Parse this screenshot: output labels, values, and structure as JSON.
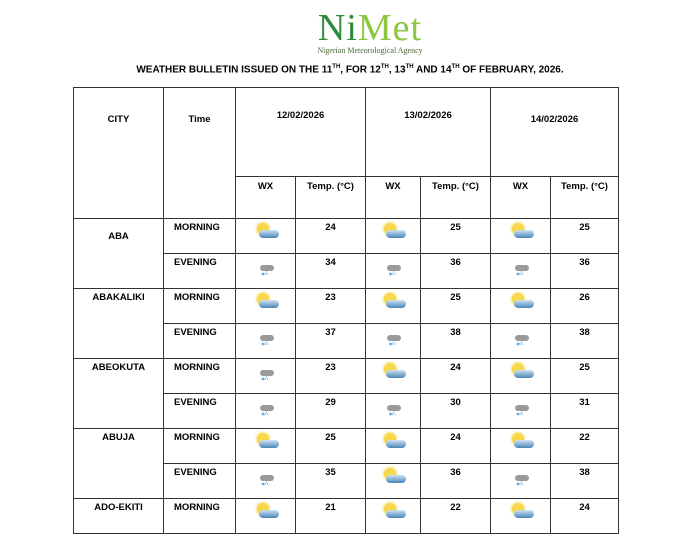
{
  "logo": {
    "name_a": "Ni",
    "name_b": "Met",
    "subtitle": "Nigerian Meteorological Agency"
  },
  "title": {
    "p1": "WEATHER BULLETIN ISSUED ON THE 11",
    "p2": ", FOR 12",
    "p3": ", 13",
    "p4": " AND 14",
    "p5": " OF FEBRUARY, 2026.",
    "sup": "TH"
  },
  "headers": {
    "city": "CITY",
    "time": "Time",
    "dates": [
      "12/02/2026",
      "13/02/2026",
      "14/02/2026"
    ],
    "wx": "WX",
    "temp": "Temp. (°C)"
  },
  "rows": [
    {
      "city": "ABA",
      "periods": [
        {
          "time": "MORNING",
          "wx": [
            "sun-cloud",
            "sun-cloud",
            "sun-cloud"
          ],
          "temps": [
            "24",
            "25",
            "25"
          ]
        },
        {
          "time": "EVENING",
          "wx": [
            "rain",
            "rain",
            "rain"
          ],
          "temps": [
            "34",
            "36",
            "36"
          ]
        }
      ]
    },
    {
      "city": "ABAKALIKI",
      "periods": [
        {
          "time": "MORNING",
          "wx": [
            "sun-cloud",
            "sun-cloud",
            "sun-cloud"
          ],
          "temps": [
            "23",
            "25",
            "26"
          ]
        },
        {
          "time": "EVENING",
          "wx": [
            "rain",
            "rain",
            "rain"
          ],
          "temps": [
            "37",
            "38",
            "38"
          ]
        }
      ]
    },
    {
      "city": "ABEOKUTA",
      "periods": [
        {
          "time": "MORNING",
          "wx": [
            "rain",
            "sun-cloud",
            "sun-cloud"
          ],
          "temps": [
            "23",
            "24",
            "25"
          ]
        },
        {
          "time": "EVENING",
          "wx": [
            "rain",
            "rain",
            "rain"
          ],
          "temps": [
            "29",
            "30",
            "31"
          ]
        }
      ]
    },
    {
      "city": "ABUJA",
      "periods": [
        {
          "time": "MORNING",
          "wx": [
            "sun-cloud",
            "sun-cloud",
            "sun-cloud"
          ],
          "temps": [
            "25",
            "24",
            "22"
          ]
        },
        {
          "time": "EVENING",
          "wx": [
            "rain",
            "sun-cloud",
            "rain"
          ],
          "temps": [
            "35",
            "36",
            "38"
          ]
        }
      ]
    },
    {
      "city": "ADO-EKITI",
      "periods": [
        {
          "time": "MORNING",
          "wx": [
            "sun-cloud",
            "sun-cloud",
            "sun-cloud"
          ],
          "temps": [
            "21",
            "22",
            "24"
          ]
        }
      ]
    }
  ]
}
